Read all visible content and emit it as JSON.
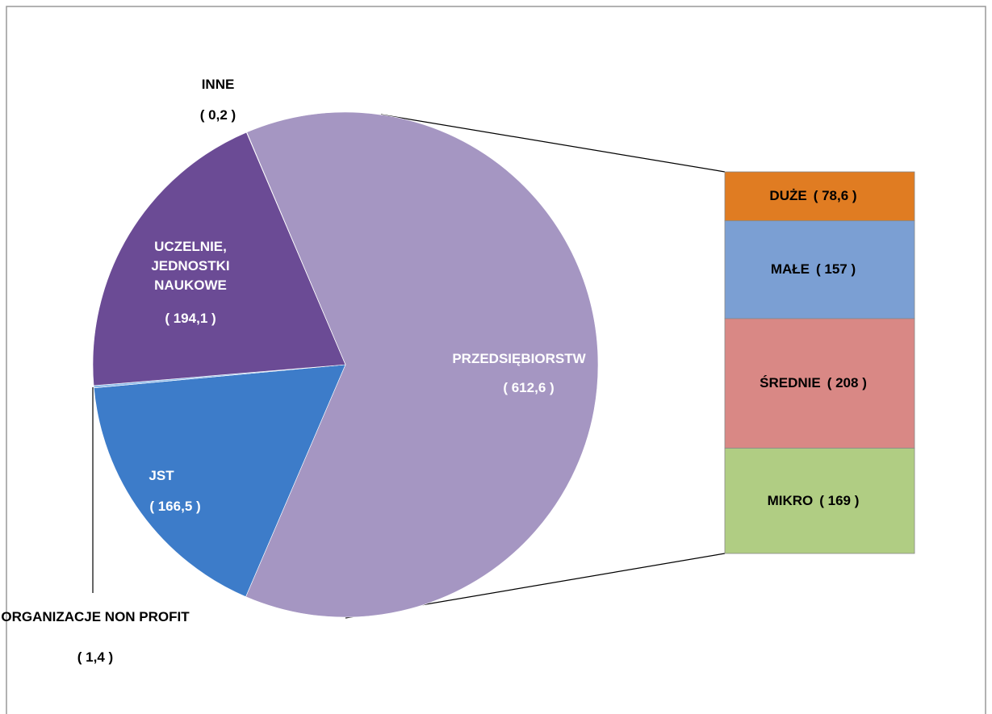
{
  "chart_data": {
    "type": "pie",
    "categories": [
      "PRZEDSIĘBIORSTW",
      "JST",
      "ORGANIZACJE NON PROFIT",
      "UCZELNIE, JEDNOSTKI NAUKOWE",
      "INNE"
    ],
    "values": [
      612.6,
      166.5,
      1.4,
      194.1,
      0.2
    ],
    "value_labels": [
      "( 612,6 )",
      "( 166,5 )",
      "( 1,4 )",
      "( 194,1  )",
      "(  0,2 )"
    ],
    "colors": [
      "#a596c2",
      "#3d7cc9",
      "#8dbbea",
      "#6b4b95",
      "#a596c2"
    ],
    "breakdown": {
      "categories": [
        "DUŻE",
        "MAŁE",
        "ŚREDNIE",
        "MIKRO"
      ],
      "values": [
        78.6,
        157,
        208,
        169
      ],
      "value_labels": [
        "( 78,6 )",
        "( 157  )",
        "( 208  )",
        "( 169 )"
      ],
      "colors": [
        "#e07c22",
        "#7b9fd3",
        "#d98885",
        "#b0cd83"
      ]
    }
  }
}
